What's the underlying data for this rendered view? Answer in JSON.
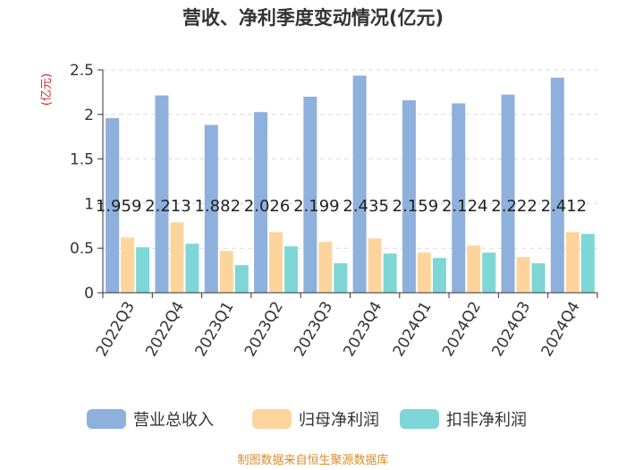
{
  "chart_data": {
    "type": "bar",
    "title": "营收、净利季度变动情况(亿元)",
    "ylabel": "(亿元)",
    "ylim": [
      0,
      2.5
    ],
    "yticks": [
      "0",
      "0.5",
      "1",
      "1.5",
      "2",
      "2.5"
    ],
    "categories": [
      "2022Q3",
      "2022Q4",
      "2023Q1",
      "2023Q2",
      "2023Q3",
      "2023Q4",
      "2024Q1",
      "2024Q2",
      "2024Q3",
      "2024Q4"
    ],
    "series": [
      {
        "name": "营业总收入",
        "color": "#8eb0dd",
        "values": [
          1.959,
          2.213,
          1.882,
          2.026,
          2.199,
          2.435,
          2.159,
          2.124,
          2.222,
          2.412
        ],
        "labels": [
          "1.959",
          "2.213",
          "1.882",
          "2.026",
          "2.199",
          "2.435",
          "2.159",
          "2.124",
          "2.222",
          "2.412"
        ]
      },
      {
        "name": "归母净利润",
        "color": "#fdd59c",
        "values": [
          0.62,
          0.79,
          0.47,
          0.68,
          0.57,
          0.61,
          0.45,
          0.53,
          0.4,
          0.68
        ]
      },
      {
        "name": "扣非净利润",
        "color": "#7fd6d6",
        "values": [
          0.51,
          0.55,
          0.31,
          0.52,
          0.33,
          0.44,
          0.39,
          0.45,
          0.33,
          0.66
        ]
      }
    ],
    "grid": true,
    "legend": "bottom"
  },
  "footer": "制图数据来自恒生聚源数据库"
}
